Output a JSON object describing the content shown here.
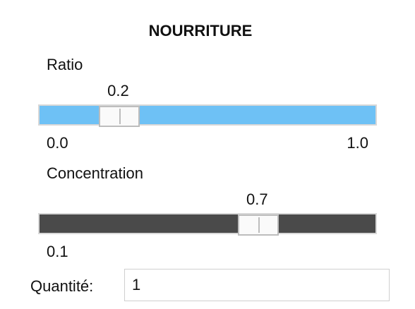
{
  "title": "NOURRITURE",
  "ratio": {
    "label": "Ratio",
    "value_text": "0.2",
    "value": 0.2,
    "min_text": "0.0",
    "max_text": "1.0",
    "track_color": "#6ec1f5"
  },
  "concentration": {
    "label": "Concentration",
    "value_text": "0.7",
    "value": 0.7,
    "min_text": "0.1",
    "track_color": "#4a4a4a"
  },
  "quantity": {
    "label": "Quantité:",
    "value": "1"
  }
}
